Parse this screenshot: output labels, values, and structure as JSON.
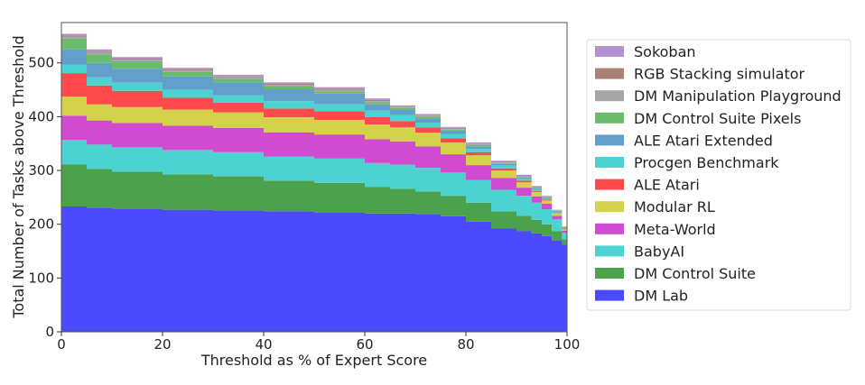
{
  "chart_data": {
    "type": "area",
    "stacked": true,
    "xlabel": "Threshold as % of Expert Score",
    "ylabel": "Total Number of Tasks above Threshold",
    "xlim": [
      0,
      100
    ],
    "ylim": [
      0,
      575
    ],
    "xticks": [
      0,
      20,
      40,
      60,
      80,
      100
    ],
    "yticks": [
      0,
      100,
      200,
      300,
      400,
      500
    ],
    "grid": false,
    "legend_position": "right",
    "x": [
      0,
      5,
      10,
      20,
      30,
      40,
      50,
      60,
      65,
      70,
      75,
      80,
      85,
      90,
      93,
      95,
      97,
      99,
      100
    ],
    "series": [
      {
        "name": "DM Lab",
        "color": "#4b4bfd",
        "values": [
          233,
          231,
          229,
          227,
          226,
          224,
          222,
          220,
          220,
          219,
          215,
          205,
          192,
          187,
          183,
          178,
          170,
          162,
          156
        ]
      },
      {
        "name": "DM Control Suite",
        "color": "#4ca24c",
        "values": [
          78,
          72,
          69,
          66,
          63,
          57,
          55,
          49,
          46,
          42,
          38,
          35,
          32,
          29,
          25,
          22,
          17,
          10,
          7
        ]
      },
      {
        "name": "BabyAI",
        "color": "#4dd2d2",
        "values": [
          46,
          45,
          45,
          45,
          45,
          45,
          45,
          45,
          45,
          44,
          43,
          42,
          40,
          37,
          32,
          28,
          22,
          12,
          6
        ]
      },
      {
        "name": "Meta-World",
        "color": "#d04bd0",
        "values": [
          45,
          45,
          45,
          45,
          45,
          45,
          45,
          44,
          43,
          40,
          34,
          28,
          22,
          15,
          12,
          10,
          7,
          4,
          2
        ]
      },
      {
        "name": "Modular RL",
        "color": "#d2d24b",
        "values": [
          35,
          30,
          30,
          30,
          29,
          28,
          27,
          27,
          26,
          25,
          22,
          18,
          14,
          10,
          8,
          6,
          4,
          3,
          2
        ]
      },
      {
        "name": "ALE Atari",
        "color": "#fd4b4b",
        "values": [
          44,
          35,
          30,
          22,
          18,
          16,
          16,
          14,
          12,
          10,
          8,
          6,
          4,
          3,
          2,
          2,
          1,
          1,
          1
        ]
      },
      {
        "name": "Procgen Benchmark",
        "color": "#4dd2d2",
        "values": [
          16,
          15,
          15,
          15,
          14,
          14,
          13,
          12,
          11,
          9,
          8,
          6,
          5,
          4,
          3,
          2,
          2,
          1,
          1
        ]
      },
      {
        "name": "ALE Atari Extended",
        "color": "#629fca",
        "values": [
          28,
          27,
          26,
          25,
          24,
          22,
          20,
          12,
          10,
          8,
          6,
          5,
          3,
          2,
          2,
          1,
          1,
          1,
          1
        ]
      },
      {
        "name": "DM Control Suite Pixels",
        "color": "#6abb6a",
        "values": [
          20,
          16,
          13,
          8,
          6,
          5,
          4,
          4,
          3,
          3,
          2,
          2,
          2,
          1,
          1,
          1,
          1,
          1,
          1
        ]
      },
      {
        "name": "DM Manipulation Playground",
        "color": "#a5a5a5",
        "values": [
          4,
          4,
          4,
          3,
          3,
          3,
          3,
          2,
          2,
          2,
          2,
          2,
          1,
          1,
          1,
          1,
          1,
          0,
          0
        ]
      },
      {
        "name": "RGB Stacking simulator",
        "color": "#ab8176",
        "values": [
          2,
          2,
          2,
          2,
          2,
          2,
          2,
          2,
          1,
          1,
          1,
          1,
          1,
          1,
          1,
          1,
          0,
          0,
          0
        ]
      },
      {
        "name": "Sokoban",
        "color": "#b392d2",
        "values": [
          3,
          3,
          3,
          3,
          3,
          3,
          3,
          3,
          2,
          2,
          2,
          2,
          2,
          2,
          1,
          1,
          1,
          1,
          0
        ]
      }
    ]
  }
}
